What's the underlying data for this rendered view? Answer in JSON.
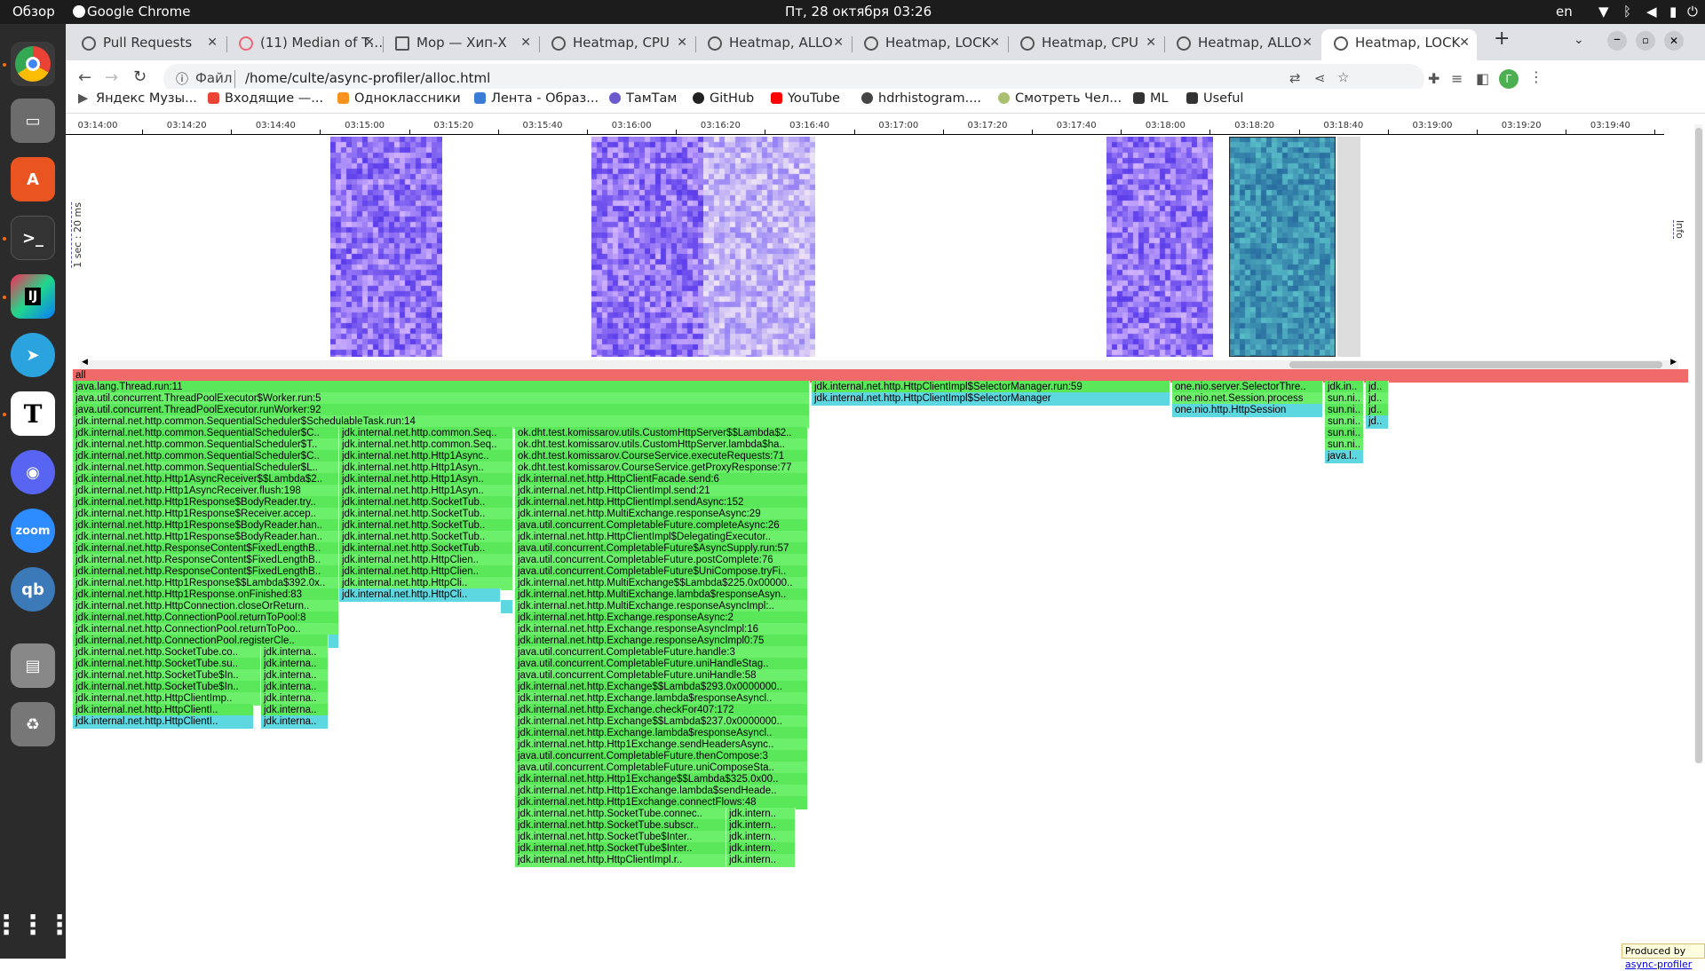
{
  "topbar": {
    "overview": "Обзор",
    "app": "Google Chrome",
    "datetime": "Пт, 28 октября  03:26",
    "lang": "en"
  },
  "tabs": [
    {
      "label": "Pull Requests"
    },
    {
      "label": "(11) Median of T…"
    },
    {
      "label": "Мор — Хип-Х"
    },
    {
      "label": "Heatmap, CPU"
    },
    {
      "label": "Heatmap, ALLO"
    },
    {
      "label": "Heatmap, LOCK"
    },
    {
      "label": "Heatmap, CPU"
    },
    {
      "label": "Heatmap, ALLO"
    },
    {
      "label": "Heatmap, LOCK"
    }
  ],
  "address": {
    "scheme_label": "Файл",
    "path": "/home/culte/async-profiler/alloc.html"
  },
  "bookmarks": [
    "Яндекс Музы...",
    "Входящие —...",
    "Одноклассники",
    "Лента - Образ...",
    "ТамТам",
    "GitHub",
    "YouTube",
    "hdrhistogram....",
    "Смотреть Чел...",
    "ML",
    "Useful"
  ],
  "heatmap": {
    "ylabel": "1 sec : 20 ms",
    "info_label": "Info",
    "ticks": [
      "03:14:00",
      "03:14:20",
      "03:14:40",
      "03:15:00",
      "03:15:20",
      "03:15:40",
      "03:16:00",
      "03:16:20",
      "03:16:40",
      "03:17:00",
      "03:17:20",
      "03:17:40",
      "03:18:00",
      "03:18:20",
      "03:18:40",
      "03:19:00",
      "03:19:20",
      "03:19:40"
    ]
  },
  "flame": {
    "root": "all",
    "frames": [
      {
        "d": 1,
        "x": 0,
        "w": 830,
        "t": "java.lang.Thread.run:11"
      },
      {
        "d": 1,
        "x": 832,
        "w": 404,
        "t": "jdk.internal.net.http.HttpClientImpl$SelectorManager.run:59"
      },
      {
        "d": 1,
        "x": 1238,
        "w": 170,
        "t": "one.nio.server.SelectorThre.."
      },
      {
        "d": 1,
        "x": 1410,
        "w": 44,
        "t": "jdk.in.."
      },
      {
        "d": 1,
        "x": 1456,
        "w": 26,
        "t": "jd.."
      },
      {
        "d": 2,
        "x": 0,
        "w": 830,
        "t": "java.util.concurrent.ThreadPoolExecutor$Worker.run:5"
      },
      {
        "d": 2,
        "x": 832,
        "w": 404,
        "t": "jdk.internal.net.http.HttpClientImpl$SelectorManager",
        "c": "cy"
      },
      {
        "d": 2,
        "x": 1238,
        "w": 170,
        "t": "one.nio.net.Session.process"
      },
      {
        "d": 2,
        "x": 1410,
        "w": 44,
        "t": "sun.ni.."
      },
      {
        "d": 2,
        "x": 1456,
        "w": 26,
        "t": "jd.."
      },
      {
        "d": 3,
        "x": 0,
        "w": 830,
        "t": "java.util.concurrent.ThreadPoolExecutor.runWorker:92"
      },
      {
        "d": 3,
        "x": 1238,
        "w": 170,
        "t": "one.nio.http.HttpSession",
        "c": "cy"
      },
      {
        "d": 3,
        "x": 1410,
        "w": 44,
        "t": "sun.ni.."
      },
      {
        "d": 3,
        "x": 1456,
        "w": 26,
        "t": "jd.."
      },
      {
        "d": 4,
        "x": 0,
        "w": 830,
        "t": "jdk.internal.net.http.common.SequentialScheduler$SchedulableTask.run:14"
      },
      {
        "d": 4,
        "x": 1410,
        "w": 44,
        "t": "sun.ni.."
      },
      {
        "d": 4,
        "x": 1456,
        "w": 26,
        "t": "jd..",
        "c": "cy"
      },
      {
        "d": 5,
        "x": 0,
        "w": 300,
        "t": "jdk.internal.net.http.common.SequentialScheduler$C.."
      },
      {
        "d": 5,
        "x": 300,
        "w": 196,
        "t": "jdk.internal.net.http.common.Seq.."
      },
      {
        "d": 5,
        "x": 498,
        "w": 330,
        "t": "ok.dht.test.komissarov.utils.CustomHttpServer$$Lambda$2.."
      },
      {
        "d": 5,
        "x": 1410,
        "w": 44,
        "t": "sun.ni.."
      },
      {
        "d": 6,
        "x": 0,
        "w": 300,
        "t": "jdk.internal.net.http.common.SequentialScheduler$T.."
      },
      {
        "d": 6,
        "x": 300,
        "w": 196,
        "t": "jdk.internal.net.http.common.Seq.."
      },
      {
        "d": 6,
        "x": 498,
        "w": 330,
        "t": "ok.dht.test.komissarov.utils.CustomHttpServer.lambda$ha.."
      },
      {
        "d": 6,
        "x": 1410,
        "w": 44,
        "t": "sun.ni.."
      },
      {
        "d": 7,
        "x": 0,
        "w": 300,
        "t": "jdk.internal.net.http.common.SequentialScheduler$C.."
      },
      {
        "d": 7,
        "x": 300,
        "w": 196,
        "t": "jdk.internal.net.http.Http1Async.."
      },
      {
        "d": 7,
        "x": 498,
        "w": 330,
        "t": "ok.dht.test.komissarov.CourseService.executeRequests:71"
      },
      {
        "d": 7,
        "x": 1410,
        "w": 44,
        "t": "java.l..",
        "c": "cy"
      },
      {
        "d": 8,
        "x": 0,
        "w": 300,
        "t": "jdk.internal.net.http.common.SequentialScheduler$L.."
      },
      {
        "d": 8,
        "x": 300,
        "w": 196,
        "t": "jdk.internal.net.http.Http1Asyn.."
      },
      {
        "d": 8,
        "x": 498,
        "w": 330,
        "t": "ok.dht.test.komissarov.CourseService.getProxyResponse:77"
      },
      {
        "d": 9,
        "x": 0,
        "w": 300,
        "t": "jdk.internal.net.http.Http1AsyncReceiver$$Lambda$2.."
      },
      {
        "d": 9,
        "x": 300,
        "w": 196,
        "t": "jdk.internal.net.http.Http1Asyn.."
      },
      {
        "d": 9,
        "x": 498,
        "w": 330,
        "t": "jdk.internal.net.http.HttpClientFacade.send:6"
      },
      {
        "d": 10,
        "x": 0,
        "w": 300,
        "t": "jdk.internal.net.http.Http1AsyncReceiver.flush:198"
      },
      {
        "d": 10,
        "x": 300,
        "w": 196,
        "t": "jdk.internal.net.http.Http1Asyn.."
      },
      {
        "d": 10,
        "x": 498,
        "w": 330,
        "t": "jdk.internal.net.http.HttpClientImpl.send:21"
      },
      {
        "d": 11,
        "x": 0,
        "w": 300,
        "t": "jdk.internal.net.http.Http1Response$BodyReader.try.."
      },
      {
        "d": 11,
        "x": 300,
        "w": 196,
        "t": "jdk.internal.net.http.SocketTub.."
      },
      {
        "d": 11,
        "x": 498,
        "w": 330,
        "t": "jdk.internal.net.http.HttpClientImpl.sendAsync:152"
      },
      {
        "d": 12,
        "x": 0,
        "w": 300,
        "t": "jdk.internal.net.http.Http1Response$Receiver.accep.."
      },
      {
        "d": 12,
        "x": 300,
        "w": 196,
        "t": "jdk.internal.net.http.SocketTub.."
      },
      {
        "d": 12,
        "x": 498,
        "w": 330,
        "t": "jdk.internal.net.http.MultiExchange.responseAsync:29"
      },
      {
        "d": 13,
        "x": 0,
        "w": 300,
        "t": "jdk.internal.net.http.Http1Response$BodyReader.han.."
      },
      {
        "d": 13,
        "x": 300,
        "w": 196,
        "t": "jdk.internal.net.http.SocketTub.."
      },
      {
        "d": 13,
        "x": 498,
        "w": 330,
        "t": "java.util.concurrent.CompletableFuture.completeAsync:26"
      },
      {
        "d": 14,
        "x": 0,
        "w": 300,
        "t": "jdk.internal.net.http.Http1Response$BodyReader.han.."
      },
      {
        "d": 14,
        "x": 300,
        "w": 196,
        "t": "jdk.internal.net.http.SocketTub.."
      },
      {
        "d": 14,
        "x": 498,
        "w": 330,
        "t": "jdk.internal.net.http.HttpClientImpl$DelegatingExecutor.."
      },
      {
        "d": 15,
        "x": 0,
        "w": 300,
        "t": "jdk.internal.net.http.ResponseContent$FixedLengthB.."
      },
      {
        "d": 15,
        "x": 300,
        "w": 196,
        "t": "jdk.internal.net.http.SocketTub.."
      },
      {
        "d": 15,
        "x": 498,
        "w": 330,
        "t": "java.util.concurrent.CompletableFuture$AsyncSupply.run:57"
      },
      {
        "d": 16,
        "x": 0,
        "w": 300,
        "t": "jdk.internal.net.http.ResponseContent$FixedLengthB.."
      },
      {
        "d": 16,
        "x": 300,
        "w": 196,
        "t": "jdk.internal.net.http.HttpClien.."
      },
      {
        "d": 16,
        "x": 498,
        "w": 330,
        "t": "java.util.concurrent.CompletableFuture.postComplete:76"
      },
      {
        "d": 17,
        "x": 0,
        "w": 300,
        "t": "jdk.internal.net.http.ResponseContent$FixedLengthB.."
      },
      {
        "d": 17,
        "x": 300,
        "w": 196,
        "t": "jdk.internal.net.http.HttpClien.."
      },
      {
        "d": 17,
        "x": 498,
        "w": 330,
        "t": "java.util.concurrent.CompletableFuture$UniCompose.tryFi.."
      },
      {
        "d": 18,
        "x": 0,
        "w": 300,
        "t": "jdk.internal.net.http.Http1Response$$Lambda$392.0x.."
      },
      {
        "d": 18,
        "x": 300,
        "w": 196,
        "t": "jdk.internal.net.http.HttpCli.."
      },
      {
        "d": 18,
        "x": 498,
        "w": 330,
        "t": "jdk.internal.net.http.MultiExchange$$Lambda$225.0x00000.."
      },
      {
        "d": 19,
        "x": 0,
        "w": 300,
        "t": "jdk.internal.net.http.Http1Response.onFinished:83"
      },
      {
        "d": 19,
        "x": 300,
        "w": 182,
        "t": "jdk.internal.net.http.HttpCli..",
        "c": "cy"
      },
      {
        "d": 19,
        "x": 498,
        "w": 330,
        "t": "jdk.internal.net.http.MultiExchange.lambda$responseAsyn.."
      },
      {
        "d": 20,
        "x": 0,
        "w": 300,
        "t": "jdk.internal.net.http.HttpConnection.closeOrReturn.."
      },
      {
        "d": 20,
        "x": 482,
        "w": 14,
        "t": "",
        "c": "cy"
      },
      {
        "d": 20,
        "x": 498,
        "w": 330,
        "t": "jdk.internal.net.http.MultiExchange.responseAsyncImpl:.."
      },
      {
        "d": 21,
        "x": 0,
        "w": 300,
        "t": "jdk.internal.net.http.ConnectionPool.returnToPool:8"
      },
      {
        "d": 21,
        "x": 498,
        "w": 330,
        "t": "jdk.internal.net.http.Exchange.responseAsync:2"
      },
      {
        "d": 22,
        "x": 0,
        "w": 300,
        "t": "jdk.internal.net.http.ConnectionPool.returnToPoo.."
      },
      {
        "d": 22,
        "x": 498,
        "w": 330,
        "t": "jdk.internal.net.http.Exchange.responseAsyncImpl:16"
      },
      {
        "d": 23,
        "x": 0,
        "w": 288,
        "t": "jdk.internal.net.http.ConnectionPool.registerCle.."
      },
      {
        "d": 23,
        "x": 288,
        "w": 12,
        "t": "",
        "c": "cy"
      },
      {
        "d": 23,
        "x": 498,
        "w": 330,
        "t": "jdk.internal.net.http.Exchange.responseAsyncImpl0:75"
      },
      {
        "d": 24,
        "x": 0,
        "w": 212,
        "t": "jdk.internal.net.http.SocketTube.co.."
      },
      {
        "d": 24,
        "x": 212,
        "w": 76,
        "t": "jdk.interna.."
      },
      {
        "d": 24,
        "x": 498,
        "w": 330,
        "t": "java.util.concurrent.CompletableFuture.handle:3"
      },
      {
        "d": 25,
        "x": 0,
        "w": 212,
        "t": "jdk.internal.net.http.SocketTube.su.."
      },
      {
        "d": 25,
        "x": 212,
        "w": 76,
        "t": "jdk.interna.."
      },
      {
        "d": 25,
        "x": 498,
        "w": 330,
        "t": "java.util.concurrent.CompletableFuture.uniHandleStag.."
      },
      {
        "d": 26,
        "x": 0,
        "w": 212,
        "t": "jdk.internal.net.http.SocketTube$In.."
      },
      {
        "d": 26,
        "x": 212,
        "w": 76,
        "t": "jdk.interna.."
      },
      {
        "d": 26,
        "x": 498,
        "w": 330,
        "t": "java.util.concurrent.CompletableFuture.uniHandle:58"
      },
      {
        "d": 27,
        "x": 0,
        "w": 212,
        "t": "jdk.internal.net.http.SocketTube$In.."
      },
      {
        "d": 27,
        "x": 212,
        "w": 76,
        "t": "jdk.interna.."
      },
      {
        "d": 27,
        "x": 498,
        "w": 330,
        "t": "jdk.internal.net.http.Exchange$$Lambda$293.0x0000000.."
      },
      {
        "d": 28,
        "x": 0,
        "w": 212,
        "t": "jdk.internal.net.http.HttpClientImp.."
      },
      {
        "d": 28,
        "x": 212,
        "w": 76,
        "t": "jdk.interna.."
      },
      {
        "d": 28,
        "x": 498,
        "w": 330,
        "t": "jdk.internal.net.http.Exchange.lambda$responseAsyncl.."
      },
      {
        "d": 29,
        "x": 0,
        "w": 204,
        "t": "jdk.internal.net.http.HttpClientI.."
      },
      {
        "d": 29,
        "x": 212,
        "w": 76,
        "t": "jdk.interna.."
      },
      {
        "d": 29,
        "x": 498,
        "w": 330,
        "t": "jdk.internal.net.http.Exchange.checkFor407:172"
      },
      {
        "d": 30,
        "x": 0,
        "w": 204,
        "t": "jdk.internal.net.http.HttpClientI..",
        "c": "cy"
      },
      {
        "d": 30,
        "x": 212,
        "w": 76,
        "t": "jdk.interna..",
        "c": "cy"
      },
      {
        "d": 30,
        "x": 498,
        "w": 330,
        "t": "jdk.internal.net.http.Exchange$$Lambda$237.0x0000000.."
      },
      {
        "d": 31,
        "x": 498,
        "w": 330,
        "t": "jdk.internal.net.http.Exchange.lambda$responseAsyncl.."
      },
      {
        "d": 32,
        "x": 498,
        "w": 330,
        "t": "jdk.internal.net.http.Http1Exchange.sendHeadersAsync.."
      },
      {
        "d": 33,
        "x": 498,
        "w": 330,
        "t": "java.util.concurrent.CompletableFuture.thenCompose:3"
      },
      {
        "d": 34,
        "x": 498,
        "w": 330,
        "t": "java.util.concurrent.CompletableFuture.uniComposeSta.."
      },
      {
        "d": 35,
        "x": 498,
        "w": 330,
        "t": "jdk.internal.net.http.Http1Exchange$$Lambda$325.0x00.."
      },
      {
        "d": 36,
        "x": 498,
        "w": 330,
        "t": "jdk.internal.net.http.Http1Exchange.lambda$sendHeade.."
      },
      {
        "d": 37,
        "x": 498,
        "w": 330,
        "t": "jdk.internal.net.http.Http1Exchange.connectFlows:48"
      },
      {
        "d": 38,
        "x": 498,
        "w": 238,
        "t": "jdk.internal.net.http.SocketTube.connec.."
      },
      {
        "d": 38,
        "x": 736,
        "w": 78,
        "t": "jdk.intern.."
      },
      {
        "d": 39,
        "x": 498,
        "w": 238,
        "t": "jdk.internal.net.http.SocketTube.subscr.."
      },
      {
        "d": 39,
        "x": 736,
        "w": 78,
        "t": "jdk.intern.."
      },
      {
        "d": 40,
        "x": 498,
        "w": 238,
        "t": "jdk.internal.net.http.SocketTube$Inter.."
      },
      {
        "d": 40,
        "x": 736,
        "w": 78,
        "t": "jdk.intern.."
      },
      {
        "d": 41,
        "x": 498,
        "w": 238,
        "t": "jdk.internal.net.http.SocketTube$Inter.."
      },
      {
        "d": 41,
        "x": 736,
        "w": 78,
        "t": "jdk.intern.."
      },
      {
        "d": 42,
        "x": 498,
        "w": 238,
        "t": "jdk.internal.net.http.HttpClientImpl.r.."
      },
      {
        "d": 42,
        "x": 736,
        "w": 78,
        "t": "jdk.intern.."
      }
    ]
  },
  "produced": {
    "prefix": "Produced by ",
    "link": "async-profiler"
  },
  "colors": {
    "root": "#f06a6a",
    "green": "#5ae85a",
    "green2": "#6cf06c",
    "cyan": "#5dd8e0",
    "purple": "#7e4ef0",
    "teal": "#3b8ea8"
  }
}
